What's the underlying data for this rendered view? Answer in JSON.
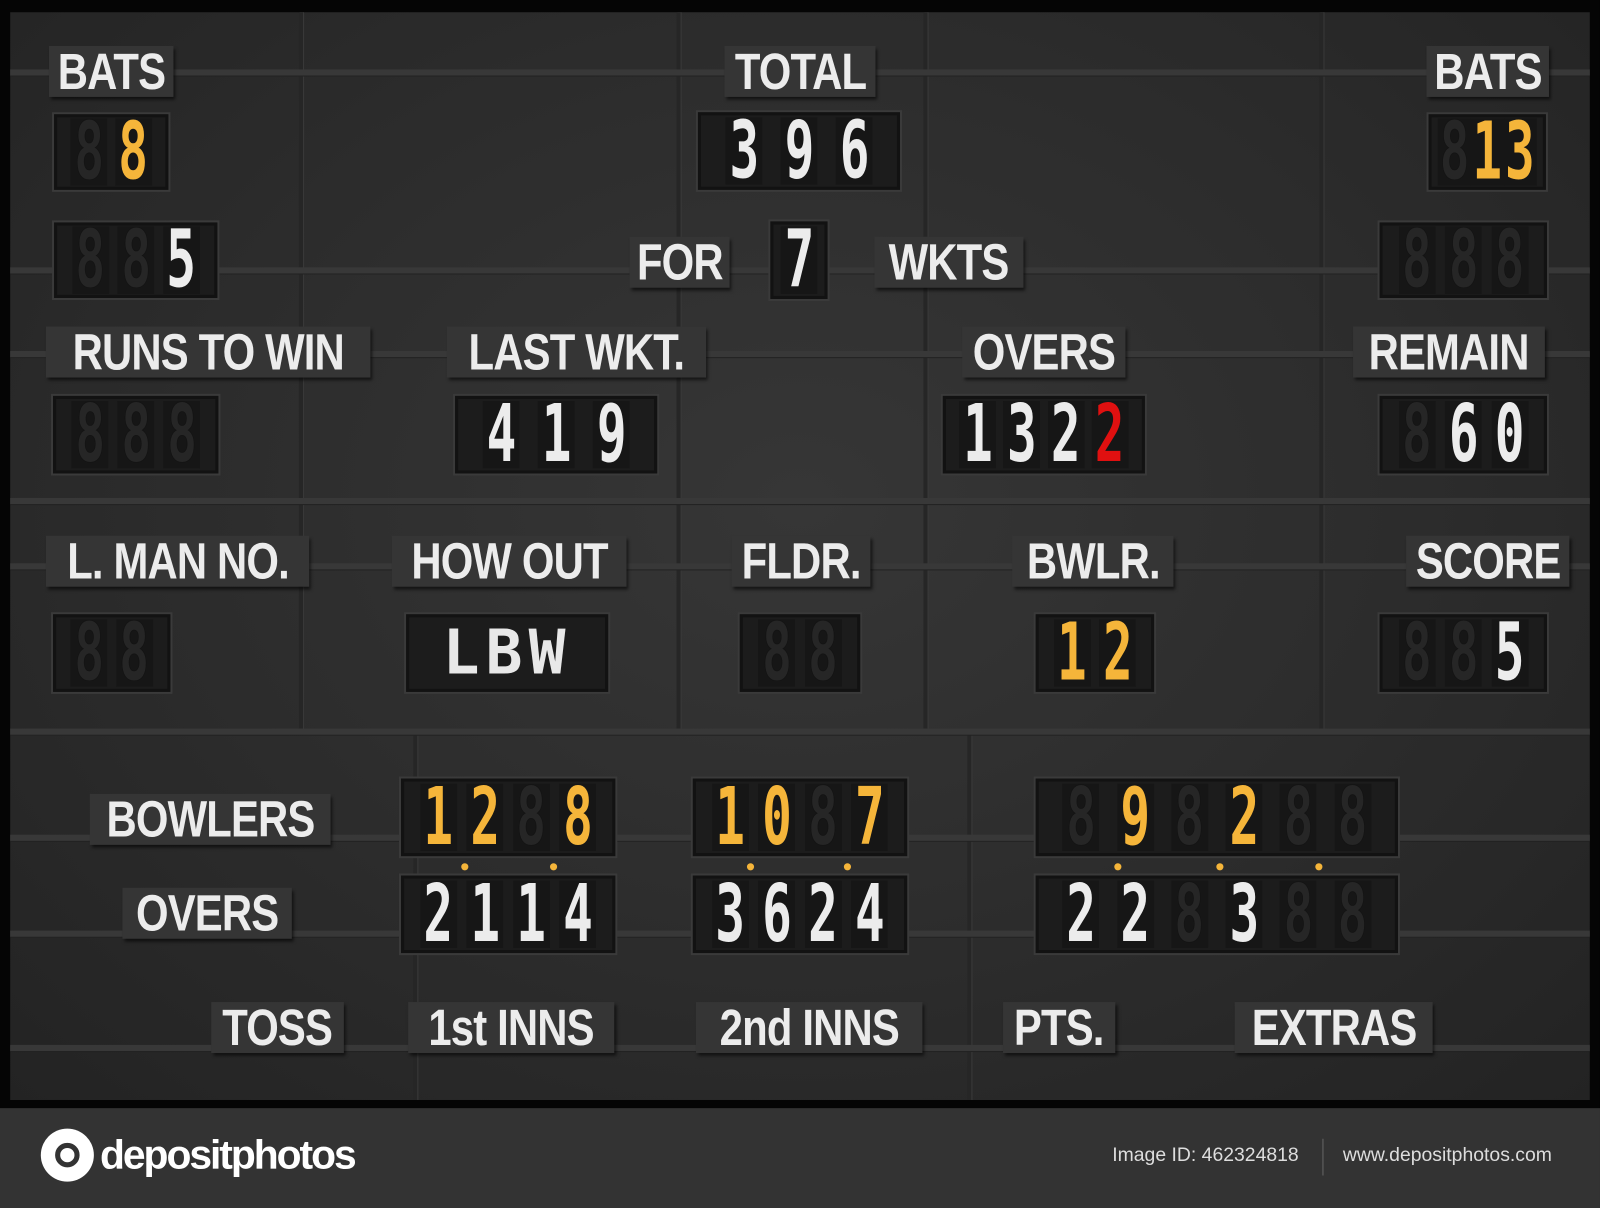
{
  "colors": {
    "white_digit": "#ececec",
    "yellow_digit": "#f5b53a",
    "red_digit": "#e01010",
    "board": "#2e2e2e"
  },
  "labels": {
    "bats_left": "BATS",
    "total": "TOTAL",
    "bats_right": "BATS",
    "for": "FOR",
    "wkts": "WKTS",
    "runs_to_win": "RUNS TO WIN",
    "last_wkt": "LAST WKT.",
    "overs": "OVERS",
    "remain": "REMAIN",
    "l_man_no": "L. MAN NO.",
    "how_out": "HOW OUT",
    "fldr": "FLDR.",
    "bwlr": "BWLR.",
    "score": "SCORE",
    "bowlers": "BOWLERS",
    "bowler_overs": "OVERS",
    "toss": "TOSS",
    "first_inns": "1st INNS",
    "second_inns": "2nd INNS",
    "pts": "PTS.",
    "extras": "EXTRAS"
  },
  "displays": {
    "bats_left": {
      "color": "yellow",
      "slots": [
        "",
        "8"
      ]
    },
    "bats_left_runs": {
      "color": "white",
      "slots": [
        "",
        "",
        "5"
      ]
    },
    "total": {
      "color": "white",
      "slots": [
        "3",
        "9",
        "6"
      ]
    },
    "wickets": {
      "color": "white",
      "slots": [
        "7"
      ]
    },
    "bats_right": {
      "color": "yellow",
      "slots": [
        "",
        "1",
        "3"
      ]
    },
    "bats_right_runs": {
      "color": "white",
      "slots": [
        "",
        "",
        ""
      ]
    },
    "runs_to_win": {
      "color": "white",
      "slots": [
        "",
        "",
        ""
      ]
    },
    "last_wkt": {
      "color": "white",
      "slots": [
        "4",
        "1",
        "9"
      ]
    },
    "overs": {
      "color": "white",
      "slots": [
        "1",
        "3",
        "2",
        "2"
      ],
      "highlight_last": "red"
    },
    "remain": {
      "color": "white",
      "slots": [
        "",
        "6",
        "0"
      ]
    },
    "l_man_no": {
      "color": "white",
      "slots": [
        "",
        ""
      ]
    },
    "how_out": {
      "text": "LBW"
    },
    "fldr": {
      "color": "white",
      "slots": [
        "",
        ""
      ]
    },
    "bwlr": {
      "color": "yellow",
      "slots": [
        "1",
        "2"
      ]
    },
    "score": {
      "color": "white",
      "slots": [
        "",
        "",
        "5"
      ]
    },
    "bowlers_1": {
      "color": "yellow",
      "slots": [
        "1",
        "2",
        "",
        "8"
      ]
    },
    "bowlers_2": {
      "color": "yellow",
      "slots": [
        "1",
        "0",
        "",
        "7"
      ]
    },
    "bowlers_3": {
      "color": "yellow",
      "slots": [
        "",
        "9",
        "",
        "2",
        "",
        ""
      ]
    },
    "overs_1": {
      "color": "white",
      "slots": [
        "2",
        "1",
        "1",
        "4"
      ]
    },
    "overs_2": {
      "color": "white",
      "slots": [
        "3",
        "6",
        "2",
        "4"
      ]
    },
    "overs_3": {
      "color": "white",
      "slots": [
        "2",
        "2",
        "",
        "3",
        "",
        ""
      ]
    }
  },
  "footer": {
    "brand": "depositphotos",
    "image_id": "Image ID: 462324818",
    "url": "www.depositphotos.com"
  }
}
